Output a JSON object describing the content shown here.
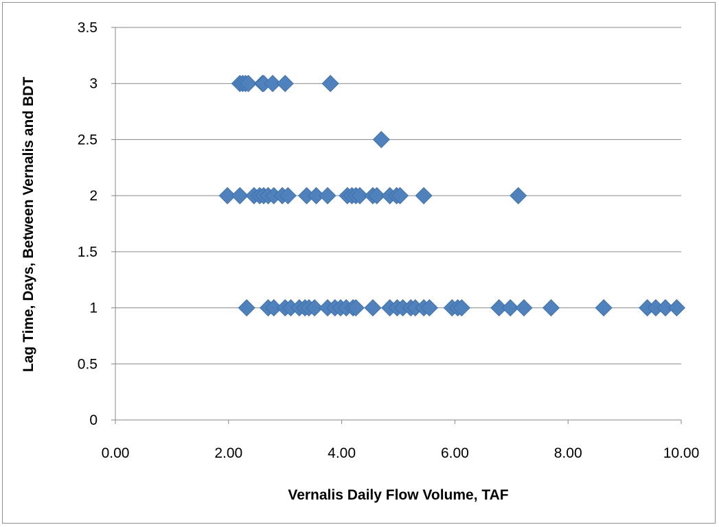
{
  "chart_data": {
    "type": "scatter",
    "xlabel": "Vernalis Daily Flow Volume, TAF",
    "ylabel": "Lag Time, Days, Between Vernalis and BDT",
    "xlim": [
      0,
      10
    ],
    "ylim": [
      0,
      3.5
    ],
    "x_ticks": [
      "0.00",
      "2.00",
      "4.00",
      "6.00",
      "8.00",
      "10.00"
    ],
    "y_ticks": [
      "0",
      "0.5",
      "1",
      "1.5",
      "2",
      "2.5",
      "3",
      "3.5"
    ],
    "grid": "horizontal",
    "legend": "none",
    "marker": "diamond",
    "color": "#4f81bd",
    "series": [
      {
        "x": [
          2.2,
          2.25,
          2.3,
          2.35,
          2.6,
          2.62,
          2.78,
          3.0,
          3.8,
          4.7,
          1.98,
          2.2,
          2.45,
          2.55,
          2.62,
          2.7,
          2.8,
          2.95,
          3.05,
          3.38,
          3.55,
          3.75,
          4.1,
          4.18,
          4.25,
          4.32,
          4.55,
          4.62,
          4.85,
          4.97,
          5.03,
          5.45,
          7.12,
          2.32,
          2.7,
          2.8,
          3.0,
          3.1,
          3.25,
          3.35,
          3.42,
          3.52,
          3.75,
          3.88,
          3.98,
          4.08,
          4.2,
          4.25,
          4.55,
          4.85,
          4.98,
          5.08,
          5.22,
          5.3,
          5.45,
          5.55,
          5.95,
          6.05,
          6.12,
          6.78,
          6.98,
          7.22,
          7.7,
          8.63,
          9.4,
          9.55,
          9.72,
          9.92
        ],
        "y": [
          3,
          3,
          3,
          3,
          3,
          3,
          3,
          3,
          3,
          2.5,
          2,
          2,
          2,
          2,
          2,
          2,
          2,
          2,
          2,
          2,
          2,
          2,
          2,
          2,
          2,
          2,
          2,
          2,
          2,
          2,
          2,
          2,
          2,
          1,
          1,
          1,
          1,
          1,
          1,
          1,
          1,
          1,
          1,
          1,
          1,
          1,
          1,
          1,
          1,
          1,
          1,
          1,
          1,
          1,
          1,
          1,
          1,
          1,
          1,
          1,
          1,
          1,
          1,
          1,
          1,
          1,
          1,
          1
        ]
      }
    ]
  }
}
